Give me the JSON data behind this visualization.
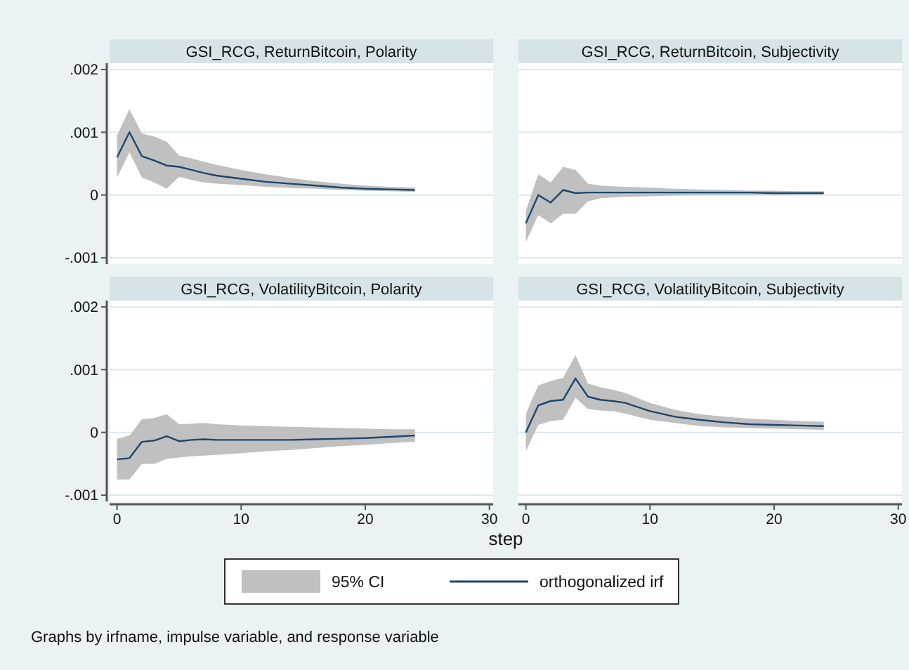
{
  "chart_data": [
    {
      "type": "line",
      "title": "GSI_RCG, ReturnBitcoin, Polarity",
      "xlim": [
        -0.6,
        30.3
      ],
      "ylim": [
        -0.0011,
        0.0021
      ],
      "yticks": [
        {
          "value": -0.001,
          "label": "-.001"
        },
        0,
        {
          "value": 0.001,
          "label": ".001"
        },
        {
          "value": 0.002,
          "label": ".002"
        }
      ],
      "grid": "y",
      "tick_labels": "y",
      "series": [
        {
          "color": "#1a476f",
          "x": [
            0,
            1,
            2,
            3,
            4,
            5,
            6,
            7,
            8,
            10,
            12,
            14,
            16,
            18,
            20,
            22,
            24
          ],
          "values": [
            0.0006,
            0.001,
            0.00062,
            0.00055,
            0.00047,
            0.00045,
            0.0004,
            0.00035,
            0.00031,
            0.00026,
            0.00021,
            0.00018,
            0.00015,
            0.00012,
            0.0001,
            9e-05,
            8e-05
          ],
          "lower": [
            0.00028,
            0.00068,
            0.00028,
            0.0002,
            0.0001,
            0.00029,
            0.00024,
            0.0002,
            0.00018,
            0.00016,
            0.00013,
            0.00011,
            0.0001,
            8e-05,
            7e-05,
            6e-05,
            5e-05
          ],
          "upper": [
            0.00095,
            0.00137,
            0.00098,
            0.00093,
            0.00085,
            0.00063,
            0.00058,
            0.00053,
            0.00048,
            0.0004,
            0.00033,
            0.00027,
            0.00022,
            0.00018,
            0.00015,
            0.00013,
            0.00012
          ]
        }
      ]
    },
    {
      "type": "line",
      "title": "GSI_RCG, ReturnBitcoin, Subjectivity",
      "xlim": [
        -0.6,
        30.3
      ],
      "ylim": [
        -0.0011,
        0.0021
      ],
      "yticks": [
        {
          "value": -0.001,
          "label": null
        },
        {
          "value": 0,
          "label": null
        },
        {
          "value": 0.001,
          "label": null
        },
        {
          "value": 0.002,
          "label": null
        }
      ],
      "grid": "y",
      "tick_labels": false,
      "series": [
        {
          "color": "#1a476f",
          "x": [
            0,
            1,
            2,
            3,
            4,
            5,
            6,
            7,
            8,
            10,
            12,
            14,
            16,
            18,
            20,
            22,
            24
          ],
          "values": [
            -0.00045,
            0.0,
            -0.00012,
            8e-05,
            3e-05,
            4e-05,
            4e-05,
            4e-05,
            4e-05,
            4e-05,
            4e-05,
            4e-05,
            4e-05,
            4e-05,
            3e-05,
            3e-05,
            3e-05
          ],
          "lower": [
            -0.00075,
            -0.00032,
            -0.00045,
            -0.0003,
            -0.0003,
            -0.0001,
            -5e-05,
            -4e-05,
            -3e-05,
            -2e-05,
            -1e-05,
            0,
            0,
            0,
            0,
            1e-05,
            1e-05
          ],
          "upper": [
            -0.00025,
            0.00033,
            0.0002,
            0.00045,
            0.0004,
            0.00018,
            0.00015,
            0.00014,
            0.00013,
            0.00012,
            0.0001,
            9e-05,
            8e-05,
            7e-05,
            7e-05,
            6e-05,
            6e-05
          ]
        }
      ]
    },
    {
      "type": "line",
      "title": "GSI_RCG, VolatilityBitcoin, Polarity",
      "xlim": [
        -0.6,
        30.3
      ],
      "ylim": [
        -0.0011,
        0.0021
      ],
      "yticks": [
        {
          "value": -0.001,
          "label": "-.001"
        },
        0,
        {
          "value": 0.001,
          "label": ".001"
        },
        {
          "value": 0.002,
          "label": ".002"
        }
      ],
      "xticks": [
        0,
        10,
        20,
        30
      ],
      "grid": "y",
      "series": [
        {
          "color": "#1a476f",
          "x": [
            0,
            1,
            2,
            3,
            4,
            5,
            6,
            7,
            8,
            10,
            12,
            14,
            16,
            18,
            20,
            22,
            24
          ],
          "values": [
            -0.00043,
            -0.00041,
            -0.00015,
            -0.00013,
            -6e-05,
            -0.00014,
            -0.00012,
            -0.00011,
            -0.00012,
            -0.00012,
            -0.00012,
            -0.00012,
            -0.00011,
            -0.0001,
            -9e-05,
            -7e-05,
            -5e-05
          ],
          "lower": [
            -0.00075,
            -0.00075,
            -0.0005,
            -0.0005,
            -0.00042,
            -0.0004,
            -0.00038,
            -0.00037,
            -0.00036,
            -0.00033,
            -0.0003,
            -0.00028,
            -0.00025,
            -0.00022,
            -0.0002,
            -0.00017,
            -0.00015
          ],
          "upper": [
            -0.0001,
            -5e-05,
            0.00021,
            0.00023,
            0.00029,
            0.00013,
            0.00014,
            0.00015,
            0.00013,
            0.00011,
            0.0001,
            9e-05,
            8e-05,
            7e-05,
            6e-05,
            5e-05,
            5e-05
          ]
        }
      ]
    },
    {
      "type": "line",
      "title": "GSI_RCG, VolatilityBitcoin, Subjectivity",
      "xlabel": "step",
      "legend": "bottom",
      "annotations": [
        "95% CI",
        "Graphs by irfname, impulse variable, and response variable"
      ],
      "xlim": [
        -0.6,
        30.3
      ],
      "ylim": [
        -0.0011,
        0.0021
      ],
      "yticks": [
        {
          "value": -0.001,
          "label": null
        },
        {
          "value": 0,
          "label": null
        },
        {
          "value": 0.001,
          "label": null
        },
        {
          "value": 0.002,
          "label": null
        }
      ],
      "xticks": [
        0,
        10,
        20,
        30
      ],
      "grid": "y",
      "tick_labels": "x",
      "series": [
        {
          "name": "orthogonalized irf",
          "color": "#1a476f",
          "x": [
            0,
            1,
            2,
            3,
            4,
            5,
            6,
            7,
            8,
            10,
            12,
            14,
            16,
            18,
            20,
            22,
            24
          ],
          "values": [
            0.0,
            0.00043,
            0.0005,
            0.00052,
            0.00086,
            0.00057,
            0.00052,
            0.0005,
            0.00047,
            0.00034,
            0.00025,
            0.0002,
            0.00016,
            0.00013,
            0.00012,
            0.00011,
            0.0001
          ],
          "lower": [
            -0.0003,
            0.00012,
            0.00018,
            0.0002,
            0.00055,
            0.00037,
            0.00035,
            0.00034,
            0.0003,
            0.0002,
            0.00015,
            0.0001,
            8e-05,
            7e-05,
            6e-05,
            5e-05,
            4e-05
          ],
          "upper": [
            0.0003,
            0.00075,
            0.00082,
            0.00087,
            0.00123,
            0.00078,
            0.00072,
            0.00068,
            0.00063,
            0.00047,
            0.00036,
            0.00029,
            0.00025,
            0.00022,
            0.0002,
            0.00018,
            0.00017
          ]
        }
      ]
    }
  ]
}
